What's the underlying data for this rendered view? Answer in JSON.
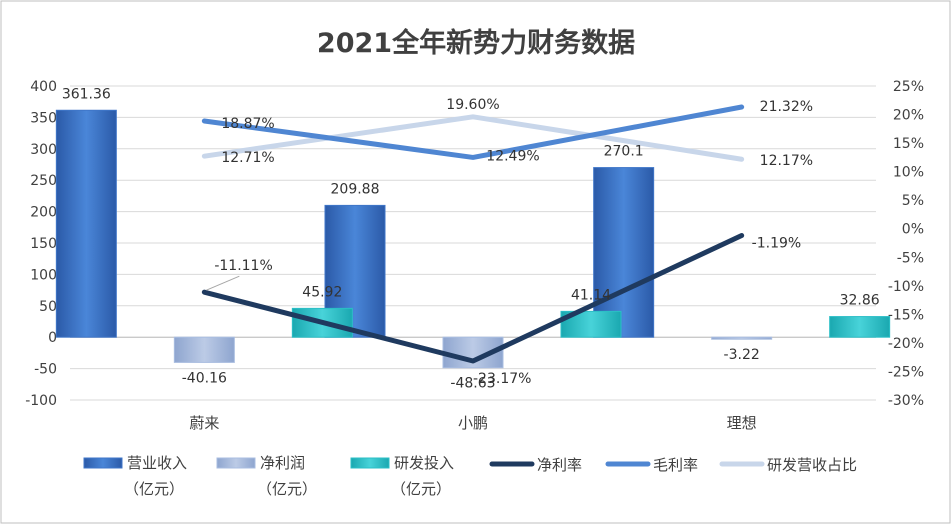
{
  "chart_data": {
    "type": "bar",
    "title": "2021全年新势力财务数据",
    "categories": [
      "蔚来",
      "小鹏",
      "理想"
    ],
    "left_axis": {
      "ylim": [
        -100,
        400
      ],
      "step": 50,
      "ticks": [
        "400",
        "350",
        "300",
        "250",
        "200",
        "150",
        "100",
        "50",
        "0",
        "-50",
        "-100"
      ]
    },
    "right_axis": {
      "ylim": [
        -30,
        25
      ],
      "step": 5,
      "ticks": [
        "25%",
        "20%",
        "15%",
        "10%",
        "5%",
        "0%",
        "-5%",
        "-10%",
        "-15%",
        "-20%",
        "-25%",
        "-30%"
      ]
    },
    "bar_series": [
      {
        "name": "营业收入（亿元）",
        "legend_lines": [
          "营业收入",
          "（亿元）"
        ],
        "values": [
          361.36,
          209.88,
          270.1
        ],
        "labels": [
          "361.36",
          "209.88",
          "270.1"
        ],
        "color": "#3f76c8"
      },
      {
        "name": "净利润（亿元）",
        "legend_lines": [
          "净利润",
          "（亿元）"
        ],
        "values": [
          -40.16,
          -48.63,
          -3.22
        ],
        "labels": [
          "-40.16",
          "-48.63",
          "-3.22"
        ],
        "color": "#a9bde0"
      },
      {
        "name": "研发投入（亿元）",
        "legend_lines": [
          "研发投入",
          "（亿元）"
        ],
        "values": [
          45.92,
          41.14,
          32.86
        ],
        "labels": [
          "45.92",
          "41.14",
          "32.86"
        ],
        "color": "#2bbfc6"
      }
    ],
    "line_series": [
      {
        "name": "净利率",
        "values": [
          -11.11,
          -23.17,
          -1.19
        ],
        "labels": [
          "-11.11%",
          "-23.17%",
          "-1.19%"
        ],
        "color": "#1f3a5f"
      },
      {
        "name": "毛利率",
        "values": [
          18.87,
          12.49,
          21.32
        ],
        "labels": [
          "18.87%",
          "12.49%",
          "21.32%"
        ],
        "color": "#4f86d2"
      },
      {
        "name": "研发营收占比",
        "values": [
          12.71,
          19.6,
          12.17
        ],
        "labels": [
          "12.71%",
          "19.60%",
          "12.17%"
        ],
        "color": "#c8d6ea"
      }
    ]
  }
}
